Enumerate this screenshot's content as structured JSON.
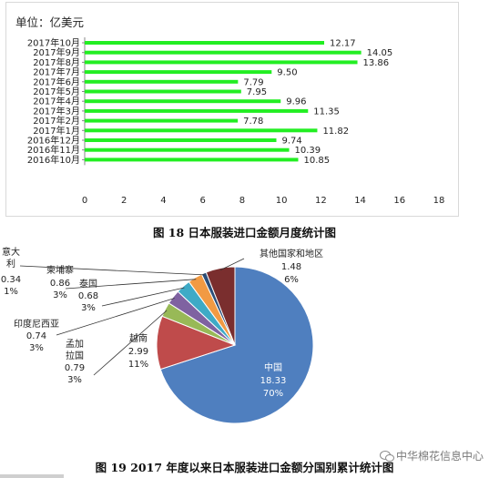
{
  "chart_data": [
    {
      "type": "bar",
      "orientation": "horizontal",
      "unit_label": "单位：亿美元",
      "categories": [
        "2017年10月",
        "2017年9月",
        "2017年8月",
        "2017年7月",
        "2017年6月",
        "2017年5月",
        "2017年4月",
        "2017年3月",
        "2017年2月",
        "2017年1月",
        "2016年12月",
        "2016年11月",
        "2016年10月"
      ],
      "values": [
        12.17,
        14.05,
        13.86,
        9.5,
        7.79,
        7.95,
        9.96,
        11.35,
        7.78,
        11.82,
        9.74,
        10.39,
        10.85
      ],
      "value_labels": [
        "12.17",
        "14.05",
        "13.86",
        "9.50",
        "7.79",
        "7.95",
        "9.96",
        "11.35",
        "7.78",
        "11.82",
        "9.74",
        "10.39",
        "10.85"
      ],
      "xlim": [
        0,
        18
      ],
      "xticks": [
        "0",
        "2",
        "4",
        "6",
        "8",
        "10",
        "12",
        "14",
        "16",
        "18"
      ],
      "bar_color": "#22ee22",
      "grid": false
    },
    {
      "type": "pie",
      "slices": [
        {
          "name": "中国",
          "value": "18.33",
          "pct": "70%",
          "share": 0.7,
          "color": "#4f7fbf"
        },
        {
          "name": "越南",
          "value": "2.99",
          "pct": "11%",
          "share": 0.11,
          "color": "#bf4b4b"
        },
        {
          "name": "孟加拉国",
          "value": "0.79",
          "pct": "3%",
          "share": 0.03,
          "color": "#98b957"
        },
        {
          "name": "印度尼西亚",
          "value": "0.74",
          "pct": "3%",
          "share": 0.03,
          "color": "#7f62a1"
        },
        {
          "name": "泰国",
          "value": "0.68",
          "pct": "3%",
          "share": 0.03,
          "color": "#3eaac6"
        },
        {
          "name": "柬埔寨",
          "value": "0.86",
          "pct": "3%",
          "share": 0.03,
          "color": "#f19a43"
        },
        {
          "name": "意大利",
          "value": "0.34",
          "pct": "1%",
          "share": 0.01,
          "color": "#2b4f7a"
        },
        {
          "name": "其他国家和地区",
          "value": "1.48",
          "pct": "6%",
          "share": 0.06,
          "color": "#7a2e2e"
        }
      ]
    }
  ],
  "captions": {
    "fig18": "图 18  日本服装进口金额月度统计图",
    "fig19": "图 19 2017 年度以来日本服装进口金额分国别累计统计图"
  },
  "watermark": "中华棉花信息中心"
}
